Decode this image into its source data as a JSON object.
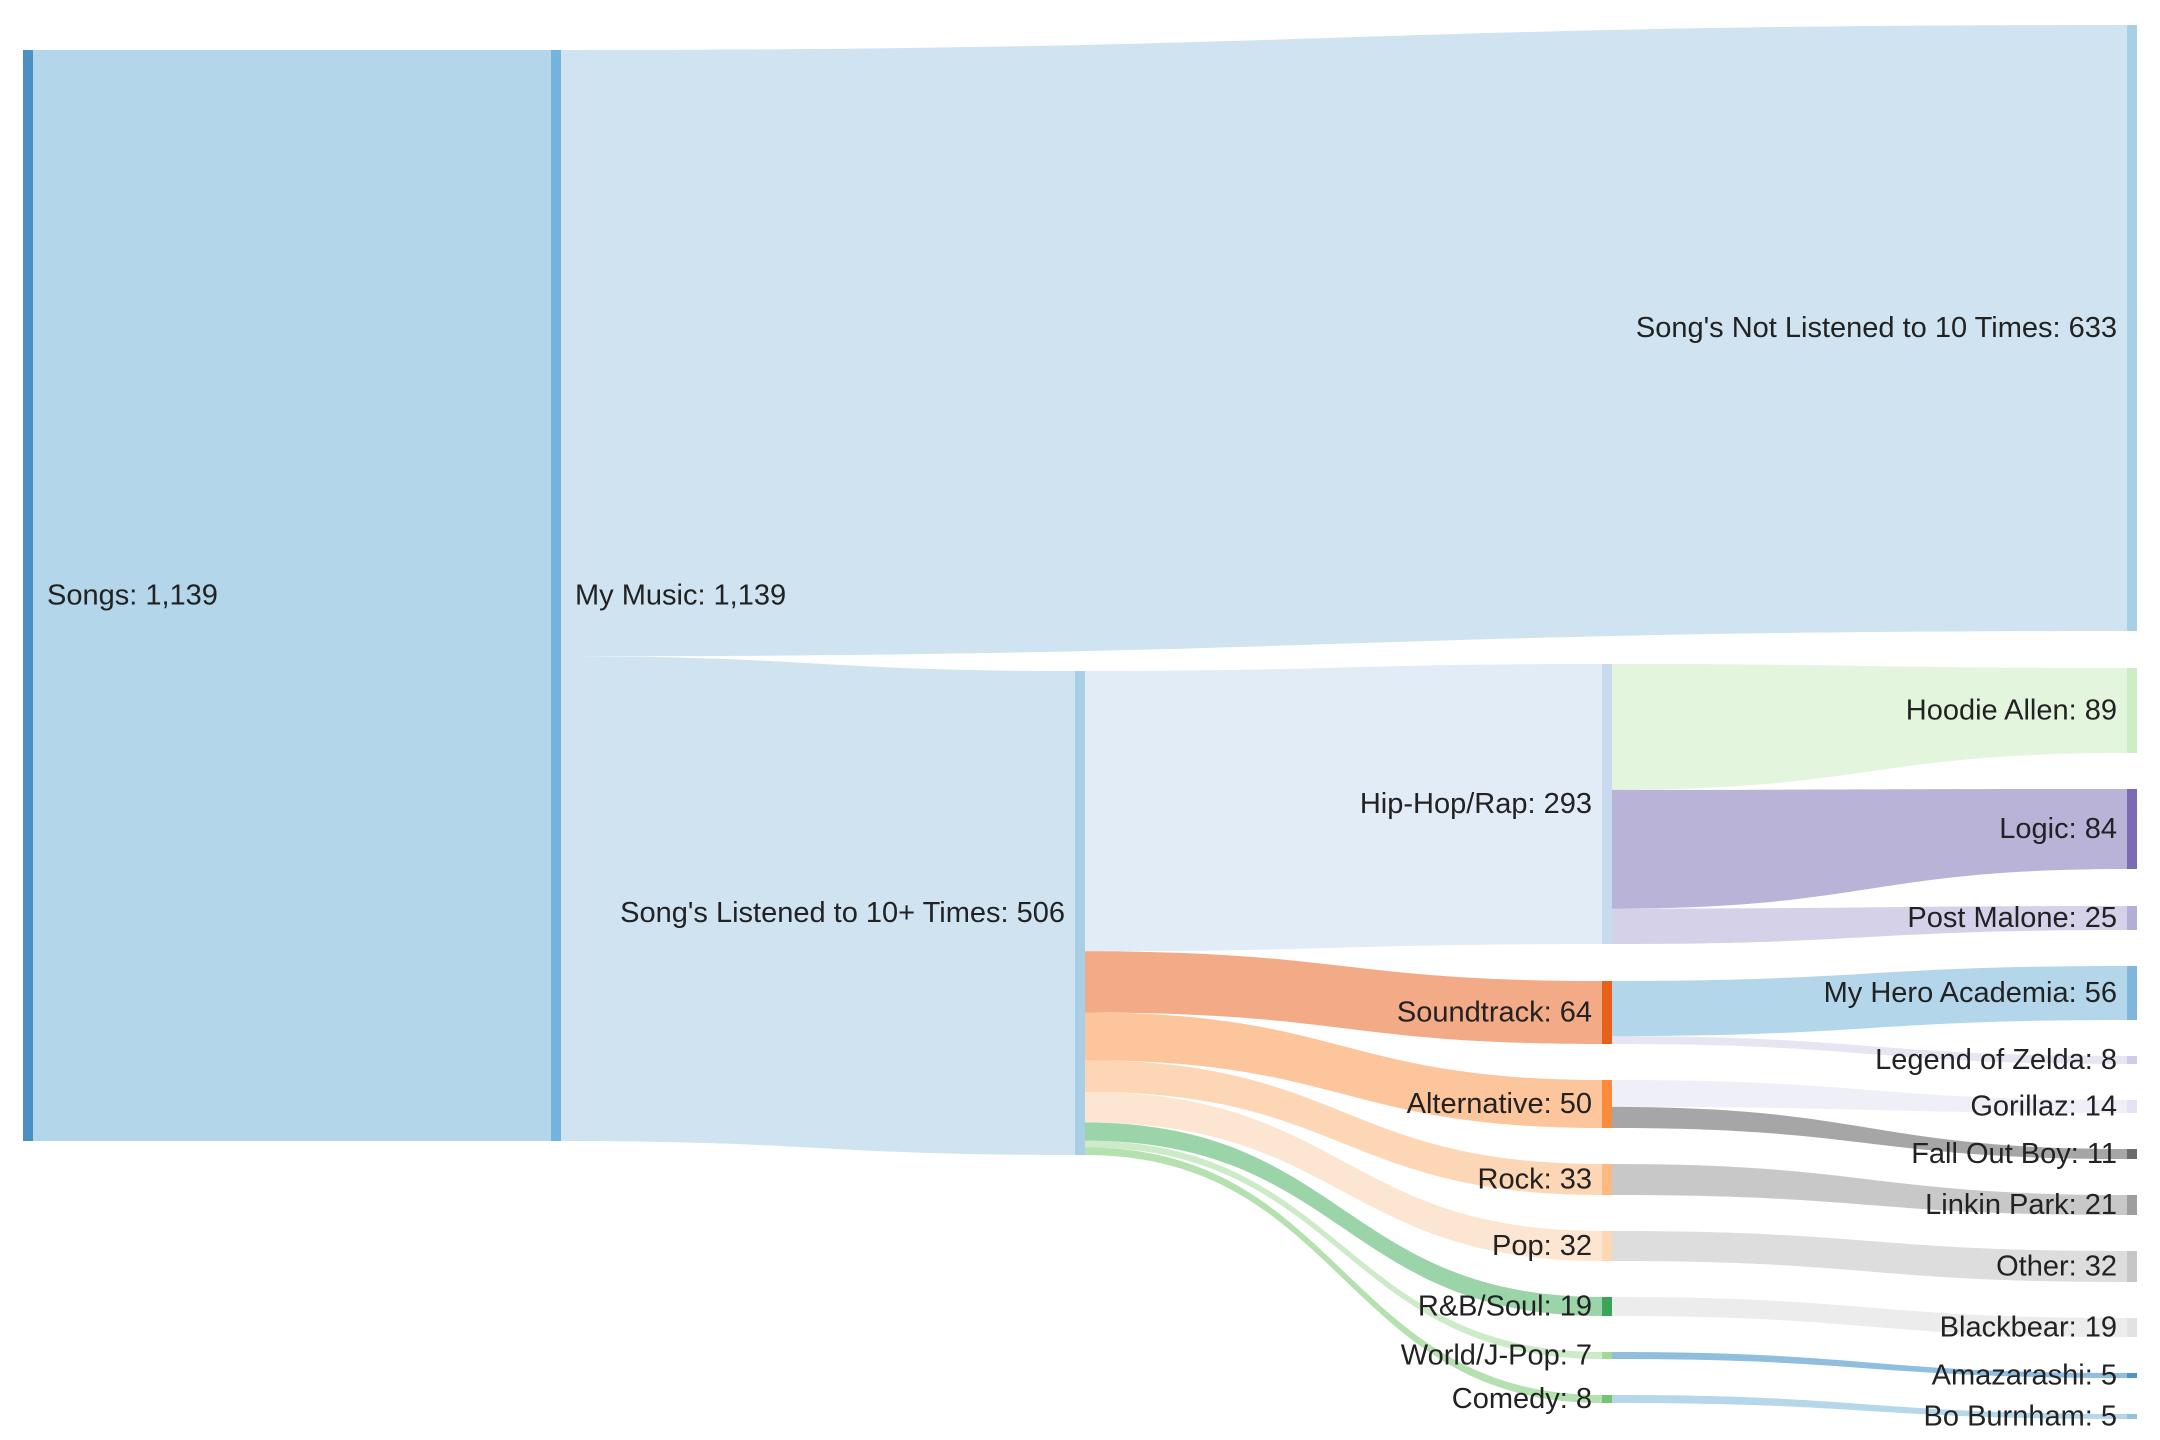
{
  "chart_data": {
    "type": "sankey",
    "title": "",
    "nodes": [
      {
        "id": "songs",
        "label": "Songs: 1,139",
        "value": 1139,
        "color": "#4a90c2"
      },
      {
        "id": "my_music",
        "label": "My Music: 1,139",
        "value": 1139,
        "color": "#74b3de"
      },
      {
        "id": "not_listened",
        "label": "Song's Not Listened to 10 Times: 633",
        "value": 633,
        "color": "#a9cfe6"
      },
      {
        "id": "listened",
        "label": "Song's Listened to 10+ Times: 506",
        "value": 506,
        "color": "#a9cfe6"
      },
      {
        "id": "hiphop",
        "label": "Hip-Hop/Rap: 293",
        "value": 293,
        "color": "#c8daed"
      },
      {
        "id": "soundtrack",
        "label": "Soundtrack: 64",
        "value": 64,
        "color": "#e8611b"
      },
      {
        "id": "alternative",
        "label": "Alternative: 50",
        "value": 50,
        "color": "#fa8c3c"
      },
      {
        "id": "rock",
        "label": "Rock: 33",
        "value": 33,
        "color": "#fcb982"
      },
      {
        "id": "pop",
        "label": "Pop: 32",
        "value": 32,
        "color": "#fdd8b2"
      },
      {
        "id": "rnb",
        "label": "R&B/Soul: 19",
        "value": 19,
        "color": "#3aa457"
      },
      {
        "id": "world",
        "label": "World/J-Pop: 7",
        "value": 7,
        "color": "#a1d99b"
      },
      {
        "id": "comedy",
        "label": "Comedy: 8",
        "value": 8,
        "color": "#74c476"
      },
      {
        "id": "hoodie",
        "label": "Hoodie Allen: 89",
        "value": 89,
        "color": "#cdeec4"
      },
      {
        "id": "logic",
        "label": "Logic: 84",
        "value": 84,
        "color": "#7b6bb5"
      },
      {
        "id": "postmalone",
        "label": "Post Malone: 25",
        "value": 25,
        "color": "#b3aed6"
      },
      {
        "id": "mha",
        "label": "My Hero Academia: 56",
        "value": 56,
        "color": "#80b5dc"
      },
      {
        "id": "zelda",
        "label": "Legend of Zelda: 8",
        "value": 8,
        "color": "#cfcde6"
      },
      {
        "id": "gorillaz",
        "label": "Gorillaz: 14",
        "value": 14,
        "color": "#e4e3f1"
      },
      {
        "id": "falloutboy",
        "label": "Fall Out Boy: 11",
        "value": 11,
        "color": "#6b6b6b"
      },
      {
        "id": "linkinpark",
        "label": "Linkin Park: 21",
        "value": 21,
        "color": "#9e9e9e"
      },
      {
        "id": "other",
        "label": "Other: 32",
        "value": 32,
        "color": "#c6c6c6"
      },
      {
        "id": "blackbear",
        "label": "Blackbear: 19",
        "value": 19,
        "color": "#e2e2e2"
      },
      {
        "id": "amazarashi",
        "label": "Amazarashi: 5",
        "value": 5,
        "color": "#4d94c9"
      },
      {
        "id": "boburnham",
        "label": "Bo Burnham: 5",
        "value": 5,
        "color": "#91c1e0"
      }
    ],
    "links": [
      {
        "source": "songs",
        "target": "my_music",
        "value": 1139,
        "color": "#b3d6ea"
      },
      {
        "source": "my_music",
        "target": "not_listened",
        "value": 633,
        "color": "#cfe4f0"
      },
      {
        "source": "my_music",
        "target": "listened",
        "value": 506,
        "color": "#cfe4f0"
      },
      {
        "source": "listened",
        "target": "hiphop",
        "value": 293,
        "color": "#e1ecf6"
      },
      {
        "source": "listened",
        "target": "soundtrack",
        "value": 64,
        "color": "#f2ab86"
      },
      {
        "source": "listened",
        "target": "alternative",
        "value": 50,
        "color": "#fcc59c"
      },
      {
        "source": "listened",
        "target": "rock",
        "value": 33,
        "color": "#fdd6b5"
      },
      {
        "source": "listened",
        "target": "pop",
        "value": 32,
        "color": "#fde6d1"
      },
      {
        "source": "listened",
        "target": "rnb",
        "value": 19,
        "color": "#9bd4a8"
      },
      {
        "source": "listened",
        "target": "world",
        "value": 7,
        "color": "#cdebc8"
      },
      {
        "source": "listened",
        "target": "comedy",
        "value": 8,
        "color": "#b5e0b0"
      },
      {
        "source": "hiphop",
        "target": "hoodie",
        "value": 89,
        "color": "#e3f5dd"
      },
      {
        "source": "hiphop",
        "target": "logic",
        "value": 84,
        "color": "#b9b3d8"
      },
      {
        "source": "hiphop",
        "target": "postmalone",
        "value": 25,
        "color": "#d4d1e8"
      },
      {
        "source": "soundtrack",
        "target": "mha",
        "value": 56,
        "color": "#b3d6ea"
      },
      {
        "source": "soundtrack",
        "target": "zelda",
        "value": 8,
        "color": "#e6e5f2"
      },
      {
        "source": "alternative",
        "target": "gorillaz",
        "value": 14,
        "color": "#efeff7"
      },
      {
        "source": "alternative",
        "target": "falloutboy",
        "value": 11,
        "color": "#a6a6a6"
      },
      {
        "source": "rock",
        "target": "linkinpark",
        "value": 21,
        "color": "#c8c8c8"
      },
      {
        "source": "pop",
        "target": "other",
        "value": 32,
        "color": "#dddddd"
      },
      {
        "source": "rnb",
        "target": "blackbear",
        "value": 19,
        "color": "#ececec"
      },
      {
        "source": "world",
        "target": "amazarashi",
        "value": 5,
        "color": "#8fbedf"
      },
      {
        "source": "comedy",
        "target": "boburnham",
        "value": 5,
        "color": "#b6d6ea"
      }
    ]
  }
}
